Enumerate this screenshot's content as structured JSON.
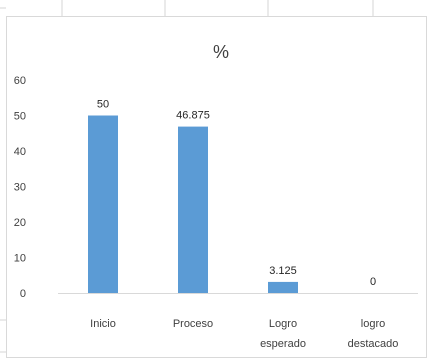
{
  "chart_data": {
    "type": "bar",
    "title": "%",
    "categories": [
      [
        "Inicio"
      ],
      [
        "Proceso"
      ],
      [
        "Logro",
        "esperado"
      ],
      [
        "logro",
        "destacado"
      ]
    ],
    "values": [
      50,
      46.875,
      3.125,
      0
    ],
    "data_labels": [
      "50",
      "46.875",
      "3.125",
      "0"
    ],
    "y_ticks": [
      "60",
      "50",
      "40",
      "30",
      "20",
      "10",
      "0"
    ],
    "ylim": [
      0,
      60
    ],
    "bar_color": "#5B9BD5",
    "grid": false,
    "legend": "none"
  }
}
